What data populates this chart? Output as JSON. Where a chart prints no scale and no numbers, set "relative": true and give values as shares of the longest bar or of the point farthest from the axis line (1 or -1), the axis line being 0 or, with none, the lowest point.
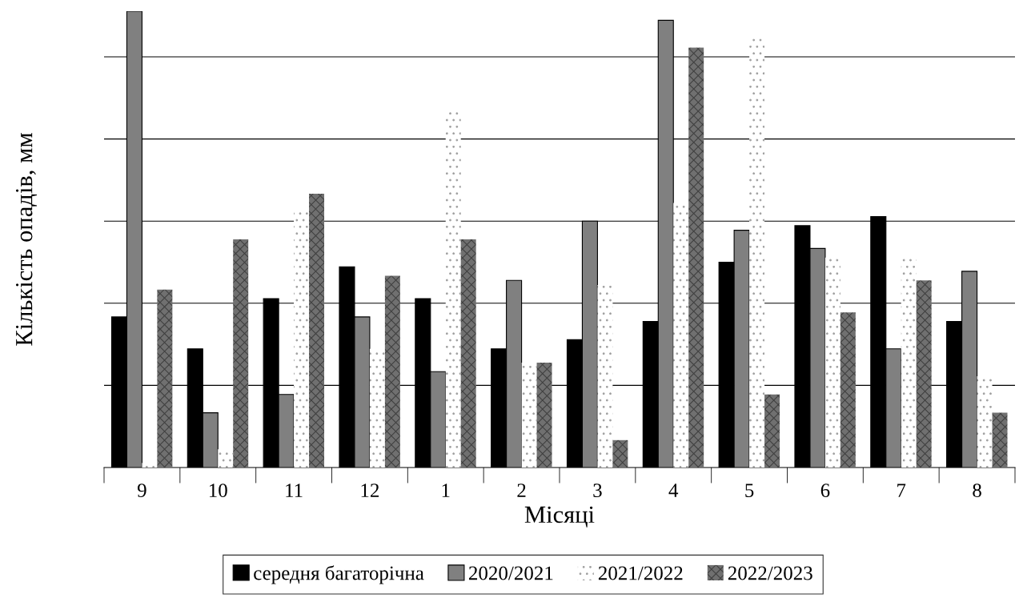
{
  "chart_data": {
    "type": "bar",
    "relative": true,
    "xlabel": "Місяці",
    "ylabel": "Кількість опадів, мм",
    "categories": [
      "9",
      "10",
      "11",
      "12",
      "1",
      "2",
      "3",
      "4",
      "5",
      "6",
      "7",
      "8"
    ],
    "series": [
      {
        "name": "середня багаторічна",
        "color": "#000000",
        "values": [
          0.33,
          0.26,
          0.37,
          0.44,
          0.37,
          0.26,
          0.28,
          0.32,
          0.45,
          0.53,
          0.55,
          0.32
        ]
      },
      {
        "name": "2020/2021",
        "color": "#808080",
        "values": [
          1.0,
          0.12,
          0.16,
          0.33,
          0.21,
          0.41,
          0.54,
          0.98,
          0.52,
          0.48,
          0.26,
          0.43
        ]
      },
      {
        "name": "2021/2022",
        "color": "#ffffff",
        "values": [
          0.01,
          0.04,
          0.56,
          0.26,
          0.78,
          0.23,
          0.4,
          0.58,
          0.94,
          0.46,
          0.46,
          0.2
        ]
      },
      {
        "name": "2022/2023",
        "color": "#707070",
        "values": [
          0.39,
          0.5,
          0.6,
          0.42,
          0.5,
          0.23,
          0.06,
          0.92,
          0.16,
          0.34,
          0.41,
          0.12
        ]
      }
    ],
    "ref_lines": [
      {
        "axis": "y",
        "value": 0.18,
        "color": "#000000"
      },
      {
        "axis": "y",
        "value": 0.36,
        "color": "#000000"
      },
      {
        "axis": "y",
        "value": 0.54,
        "color": "#000000"
      },
      {
        "axis": "y",
        "value": 0.72,
        "color": "#000000"
      },
      {
        "axis": "y",
        "value": 0.9,
        "color": "#000000"
      }
    ],
    "legend": "bottom"
  }
}
